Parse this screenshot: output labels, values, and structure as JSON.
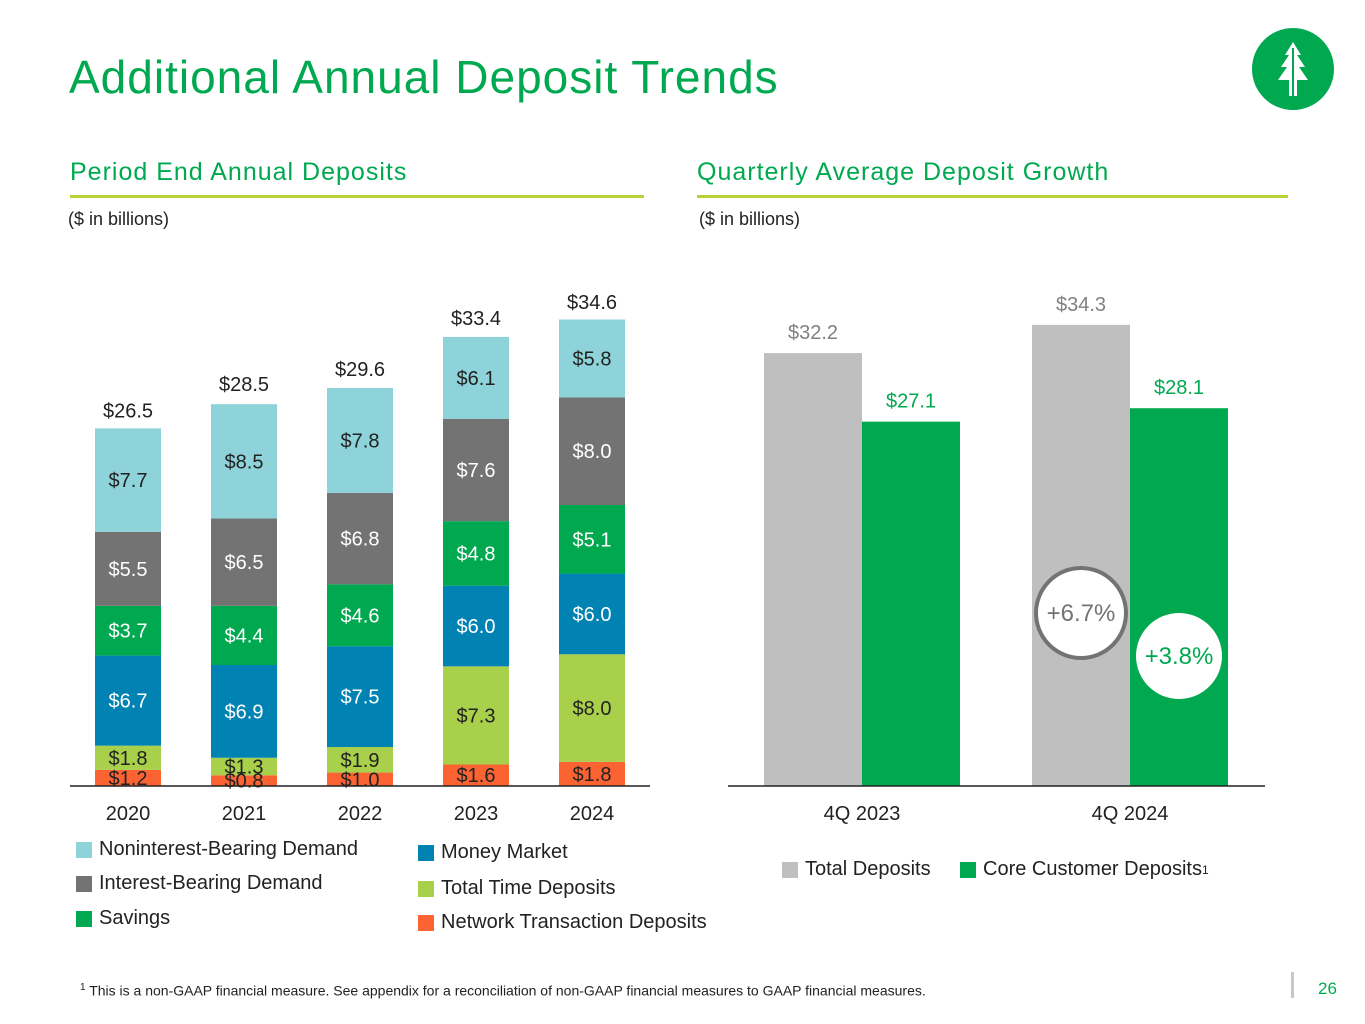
{
  "title": "Additional Annual Deposit Trends",
  "page_number": "26",
  "footnote": {
    "marker": "1",
    "text": "This is a non-GAAP financial measure. See appendix for a reconciliation of non-GAAP financial measures to GAAP financial measures."
  },
  "colors": {
    "brand_green": "#00a94f",
    "rule_green": "#b5d334",
    "noninterest_bearing": "#8dd3d9",
    "interest_bearing": "#737373",
    "savings": "#00a94f",
    "money_market": "#0083b3",
    "time_deposits": "#a9d04a",
    "network": "#fb6432",
    "total_deposits_gray": "#bfbfbf"
  },
  "left_section": {
    "title": "Period End Annual Deposits",
    "unit_note": "($ in billions)"
  },
  "right_section": {
    "title": "Quarterly Average Deposit Growth",
    "unit_note": "($ in billions)"
  },
  "chart_data": [
    {
      "type": "bar",
      "stacked": true,
      "title": "Period End Annual Deposits",
      "subtitle": "($ in billions)",
      "categories": [
        "2020",
        "2021",
        "2022",
        "2023",
        "2024"
      ],
      "totals": [
        26.5,
        28.5,
        29.6,
        33.4,
        34.6
      ],
      "total_labels": [
        "$26.5",
        "$28.5",
        "$29.6",
        "$33.4",
        "$34.6"
      ],
      "series": [
        {
          "name": "Network Transaction Deposits",
          "color": "#fb6432",
          "values": [
            1.2,
            0.8,
            1.0,
            1.6,
            1.8
          ],
          "labels": [
            "$1.2",
            "$0.8",
            "$1.0",
            "$1.6",
            "$1.8"
          ]
        },
        {
          "name": "Total Time Deposits",
          "color": "#a9d04a",
          "values": [
            1.8,
            1.3,
            1.9,
            7.3,
            8.0
          ],
          "labels": [
            "$1.8",
            "$1.3",
            "$1.9",
            "$7.3",
            "$8.0"
          ]
        },
        {
          "name": "Money Market",
          "color": "#0083b3",
          "values": [
            6.7,
            6.9,
            7.5,
            6.0,
            6.0
          ],
          "labels": [
            "$6.7",
            "$6.9",
            "$7.5",
            "$6.0",
            "$6.0"
          ]
        },
        {
          "name": "Savings",
          "color": "#00a94f",
          "values": [
            3.7,
            4.4,
            4.6,
            4.8,
            5.1
          ],
          "labels": [
            "$3.7",
            "$4.4",
            "$4.6",
            "$4.8",
            "$5.1"
          ]
        },
        {
          "name": "Interest-Bearing Demand",
          "color": "#737373",
          "values": [
            5.5,
            6.5,
            6.8,
            7.6,
            8.0
          ],
          "labels": [
            "$5.5",
            "$6.5",
            "$6.8",
            "$7.6",
            "$8.0"
          ]
        },
        {
          "name": "Noninterest-Bearing Demand",
          "color": "#8dd3d9",
          "values": [
            7.7,
            8.5,
            7.8,
            6.1,
            5.8
          ],
          "labels": [
            "$7.7",
            "$8.5",
            "$7.8",
            "$6.1",
            "$5.8"
          ]
        }
      ],
      "legend": {
        "placement": "bottom",
        "items": [
          {
            "name": "Noninterest-Bearing Demand",
            "color": "#8dd3d9"
          },
          {
            "name": "Interest-Bearing Demand",
            "color": "#737373"
          },
          {
            "name": "Savings",
            "color": "#00a94f"
          },
          {
            "name": "Money Market",
            "color": "#0083b3"
          },
          {
            "name": "Total Time Deposits",
            "color": "#a9d04a"
          },
          {
            "name": "Network Transaction Deposits",
            "color": "#fb6432"
          }
        ]
      },
      "ylim": [
        0,
        36
      ],
      "grid": false
    },
    {
      "type": "bar",
      "grouped": true,
      "title": "Quarterly Average Deposit Growth",
      "subtitle": "($ in billions)",
      "categories": [
        "4Q 2023",
        "4Q 2024"
      ],
      "series": [
        {
          "name": "Total Deposits",
          "color": "#bfbfbf",
          "label_color": "#808080",
          "values": [
            32.2,
            34.3
          ],
          "labels": [
            "$32.2",
            "$34.3"
          ]
        },
        {
          "name": "Core Customer Deposits",
          "superscript": "1",
          "color": "#00a94f",
          "label_color": "#00a94f",
          "values": [
            27.1,
            28.1
          ],
          "labels": [
            "$27.1",
            "$28.1"
          ]
        }
      ],
      "annotations": [
        {
          "text": "+6.7%",
          "series": "Total Deposits",
          "style": "outlined-circle",
          "color": "#737373"
        },
        {
          "text": "+3.8%",
          "series": "Core Customer Deposits",
          "style": "filled-circle",
          "color": "#00a94f"
        }
      ],
      "legend": {
        "placement": "bottom"
      },
      "ylim": [
        0,
        36
      ],
      "grid": false
    }
  ]
}
